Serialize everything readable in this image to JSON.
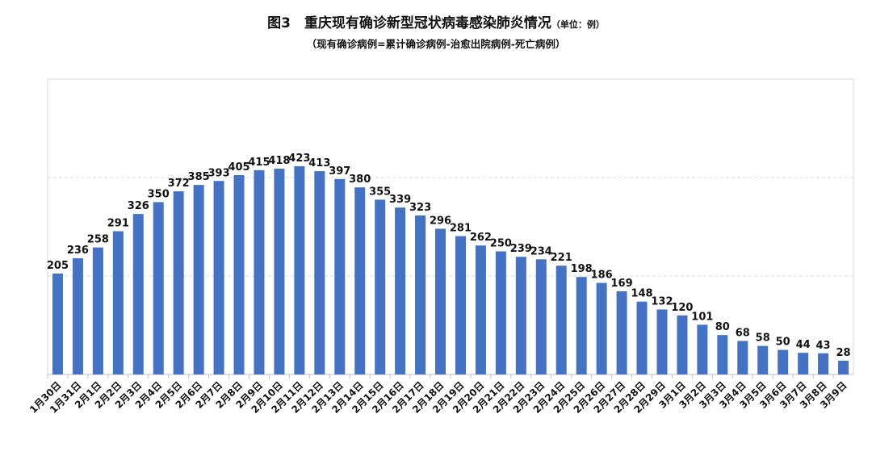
{
  "chart_data": {
    "type": "bar",
    "title": "图3　重庆现有确诊新型冠状病毒感染肺炎情况",
    "unit_note": "（单位：例）",
    "subtitle": "（现有确诊病例=累计确诊病例-治愈出院病例-死亡病例）",
    "xlabel": "",
    "ylabel": "",
    "ylim": [
      0,
      600
    ],
    "grid": true,
    "gridlines": [
      200,
      400
    ],
    "bar_color": "#4472C4",
    "categories": [
      "1月30日",
      "1月31日",
      "2月1日",
      "2月2日",
      "2月3日",
      "2月4日",
      "2月5日",
      "2月6日",
      "2月7日",
      "2月8日",
      "2月9日",
      "2月10日",
      "2月11日",
      "2月12日",
      "2月13日",
      "2月14日",
      "2月15日",
      "2月16日",
      "2月17日",
      "2月18日",
      "2月19日",
      "2月20日",
      "2月21日",
      "2月22日",
      "2月23日",
      "2月24日",
      "2月25日",
      "2月26日",
      "2月27日",
      "2月28日",
      "2月29日",
      "3月1日",
      "3月2日",
      "3月3日",
      "3月4日",
      "3月5日",
      "3月6日",
      "3月7日",
      "3月8日",
      "3月9日"
    ],
    "values": [
      205,
      236,
      258,
      291,
      326,
      350,
      372,
      385,
      393,
      405,
      415,
      418,
      423,
      413,
      397,
      380,
      355,
      339,
      323,
      296,
      281,
      262,
      250,
      239,
      234,
      221,
      198,
      186,
      169,
      148,
      132,
      120,
      101,
      80,
      68,
      58,
      50,
      44,
      43,
      28
    ]
  }
}
